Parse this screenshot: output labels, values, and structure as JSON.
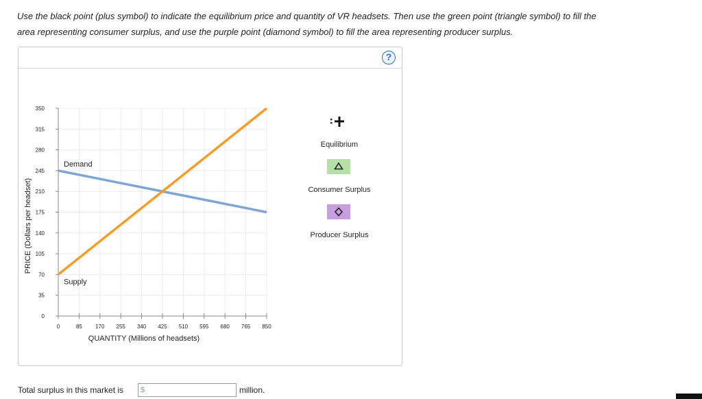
{
  "instructions": {
    "line1": "Use the black point (plus symbol) to indicate the equilibrium price and quantity of VR headsets. Then use the green point (triangle symbol) to fill the",
    "line2": "area representing consumer surplus, and use the purple point (diamond symbol) to fill the area representing producer surplus."
  },
  "help": {
    "label": "?"
  },
  "chart_data": {
    "type": "line",
    "xlabel": "QUANTITY (Millions of headsets)",
    "ylabel": "PRICE (Dollars per headset)",
    "xlim": [
      0,
      850
    ],
    "ylim": [
      0,
      350
    ],
    "x_ticks": [
      "0",
      "85",
      "170",
      "255",
      "340",
      "425",
      "510",
      "595",
      "680",
      "765",
      "850"
    ],
    "y_ticks": [
      "0",
      "35",
      "70",
      "105",
      "140",
      "175",
      "210",
      "245",
      "280",
      "315",
      "350"
    ],
    "series": [
      {
        "name": "Demand",
        "color": "#7ea6d4",
        "points": [
          [
            0,
            245
          ],
          [
            850,
            175
          ]
        ]
      },
      {
        "name": "Supply",
        "color": "#f59d2a",
        "points": [
          [
            0,
            70
          ],
          [
            850,
            350
          ]
        ]
      }
    ]
  },
  "tools": {
    "equilibrium": {
      "label": "Equilibrium",
      "icon": "plus-icon",
      "color": "#111111"
    },
    "consumer_surplus": {
      "label": "Consumer Surplus",
      "icon": "triangle-icon",
      "color": "#b5e0a8"
    },
    "producer_surplus": {
      "label": "Producer Surplus",
      "icon": "diamond-icon",
      "color": "#c79ee0"
    }
  },
  "footer": {
    "prompt": "Total surplus in this market is",
    "currency": "$",
    "value": "",
    "unit": "million."
  }
}
